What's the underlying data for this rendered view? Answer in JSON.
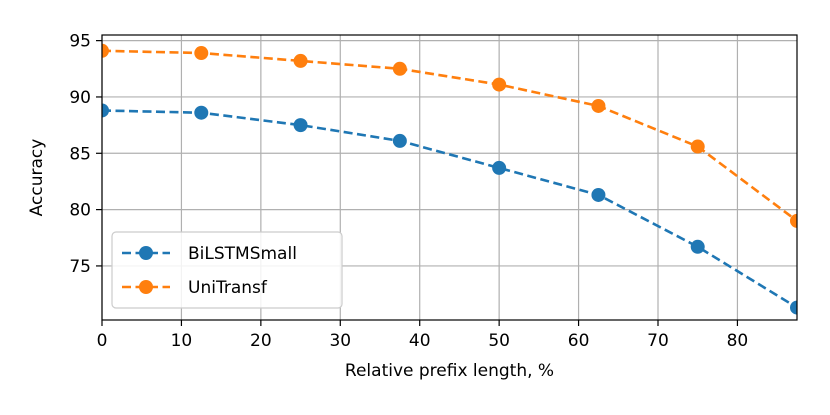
{
  "chart_data": {
    "type": "line",
    "title": "",
    "xlabel": "Relative prefix length, %",
    "ylabel": "Accuracy",
    "xlim": [
      0,
      87.5
    ],
    "ylim": [
      70.2,
      95.5
    ],
    "xticks": [
      0,
      10,
      20,
      30,
      40,
      50,
      60,
      70,
      80
    ],
    "yticks": [
      75,
      80,
      85,
      90,
      95
    ],
    "grid": true,
    "legend": "lower-left",
    "x": [
      0,
      12.5,
      25,
      37.5,
      50,
      62.5,
      75,
      87.5
    ],
    "series": [
      {
        "name": "BiLSTMSmall",
        "color": "#1f77b4",
        "values": [
          88.8,
          88.6,
          87.5,
          86.1,
          83.7,
          81.3,
          76.7,
          71.3
        ]
      },
      {
        "name": "UniTransf",
        "color": "#ff7f0e",
        "values": [
          94.1,
          93.9,
          93.2,
          92.5,
          91.1,
          89.2,
          85.6,
          79.0
        ]
      }
    ]
  }
}
